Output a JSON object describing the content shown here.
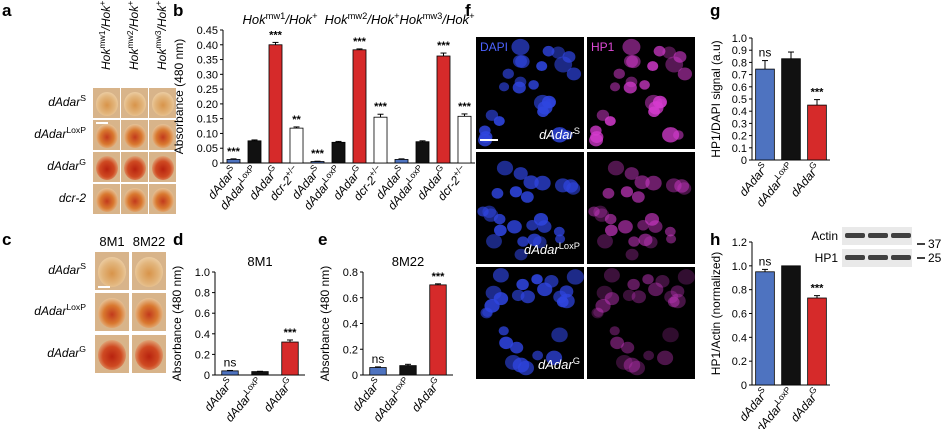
{
  "colors": {
    "blue": "#4e73c0",
    "black": "#111111",
    "red": "#d62a2a",
    "white": "#ffffff",
    "dapi": "#2f45e0",
    "hp1": "#d63bd0",
    "eye_bg": "#d8b48a"
  },
  "panel_a": {
    "letter": "a",
    "columns": [
      "Hok",
      "Hok",
      "Hok"
    ],
    "column_sups": [
      "mw1",
      "mw2",
      "mw3"
    ],
    "column_suffix": "/Hok",
    "column_suffix_sup": "+",
    "rows": [
      {
        "base": "dAdar",
        "sup": "S"
      },
      {
        "base": "dAdar",
        "sup": "LoxP"
      },
      {
        "base": "dAdar",
        "sup": "G"
      },
      {
        "base": "dcr-2",
        "sup": ""
      }
    ]
  },
  "panel_c": {
    "letter": "c",
    "columns": [
      "8M1",
      "8M22"
    ],
    "rows": [
      {
        "base": "dAdar",
        "sup": "S"
      },
      {
        "base": "dAdar",
        "sup": "LoxP"
      },
      {
        "base": "dAdar",
        "sup": "G"
      }
    ]
  },
  "panel_f": {
    "letter": "f",
    "channels": [
      "DAPI",
      "HP1"
    ],
    "rows": [
      {
        "base": "dAdar",
        "sup": "S"
      },
      {
        "base": "dAdar",
        "sup": "LoxP"
      },
      {
        "base": "dAdar",
        "sup": "G"
      }
    ]
  },
  "blot": {
    "bands": [
      "Actin",
      "HP1"
    ],
    "markers": [
      "37",
      "25"
    ]
  },
  "chart_data": [
    {
      "panel": "b",
      "type": "bar",
      "ylabel": "Absorbance (480 nm)",
      "ylim": [
        0,
        0.45
      ],
      "yticks": [
        "0",
        "0.05",
        "0.10",
        "0.15",
        "0.20",
        "0.25",
        "0.30",
        "0.35",
        "0.40",
        "0.45"
      ],
      "groups": [
        {
          "label_base": "Hok",
          "label_sup": "mw1",
          "label_suffix": "/Hok",
          "label_suffix_sup": "+"
        },
        {
          "label_base": "Hok",
          "label_sup": "mw2",
          "label_suffix": "/Hok",
          "label_suffix_sup": "+"
        },
        {
          "label_base": "Hok",
          "label_sup": "mw3",
          "label_suffix": "/Hok",
          "label_suffix_sup": "+"
        }
      ],
      "categories": [
        {
          "base": "dAdar",
          "sup": "S"
        },
        {
          "base": "dAdar",
          "sup": "LoxP"
        },
        {
          "base": "dAdar",
          "sup": "G"
        },
        {
          "base": "dcr-2",
          "sup": "+/−"
        },
        {
          "base": "dAdar",
          "sup": "S"
        },
        {
          "base": "dAdar",
          "sup": "LoxP"
        },
        {
          "base": "dAdar",
          "sup": "G"
        },
        {
          "base": "dcr-2",
          "sup": "+/−"
        },
        {
          "base": "dAdar",
          "sup": "S"
        },
        {
          "base": "dAdar",
          "sup": "LoxP"
        },
        {
          "base": "dAdar",
          "sup": "G"
        },
        {
          "base": "dcr-2",
          "sup": "+/−"
        }
      ],
      "values": [
        0.012,
        0.075,
        0.4,
        0.118,
        0.005,
        0.07,
        0.383,
        0.155,
        0.012,
        0.072,
        0.362,
        0.158
      ],
      "errors": [
        0.002,
        0.003,
        0.008,
        0.004,
        0.001,
        0.003,
        0.003,
        0.01,
        0.002,
        0.003,
        0.01,
        0.008
      ],
      "fills": [
        "blue",
        "black",
        "red",
        "white",
        "blue",
        "black",
        "red",
        "white",
        "blue",
        "black",
        "red",
        "white"
      ],
      "annotations": [
        "***",
        "",
        "***",
        "**",
        "***",
        "",
        "***",
        "***",
        "",
        "",
        "***",
        "***"
      ]
    },
    {
      "panel": "d",
      "type": "bar",
      "title": "8M1",
      "ylabel": "Absorbance (480 nm)",
      "ylim": [
        0,
        1.0
      ],
      "yticks": [
        "0",
        "0.2",
        "0.4",
        "0.6",
        "0.8",
        "1.0"
      ],
      "categories": [
        {
          "base": "dAdar",
          "sup": "S"
        },
        {
          "base": "dAdar",
          "sup": "LoxP"
        },
        {
          "base": "dAdar",
          "sup": "G"
        }
      ],
      "values": [
        0.04,
        0.033,
        0.32
      ],
      "errors": [
        0.004,
        0.003,
        0.02
      ],
      "fills": [
        "blue",
        "black",
        "red"
      ],
      "annotations": [
        "ns",
        "",
        "***"
      ]
    },
    {
      "panel": "e",
      "type": "bar",
      "title": "8M22",
      "ylabel": "Absorbance (480 nm)",
      "ylim": [
        0,
        0.8
      ],
      "yticks": [
        "0",
        "0.2",
        "0.4",
        "0.6",
        "0.8"
      ],
      "categories": [
        {
          "base": "dAdar",
          "sup": "S"
        },
        {
          "base": "dAdar",
          "sup": "LoxP"
        },
        {
          "base": "dAdar",
          "sup": "G"
        }
      ],
      "values": [
        0.058,
        0.073,
        0.7
      ],
      "errors": [
        0.005,
        0.01,
        0.008
      ],
      "fills": [
        "blue",
        "black",
        "red"
      ],
      "annotations": [
        "ns",
        "",
        "***"
      ]
    },
    {
      "panel": "g",
      "type": "bar",
      "ylabel": "HP1/DAPI signal (a.u)",
      "ylim": [
        0,
        1.0
      ],
      "yticks": [
        "0",
        "0.1",
        "0.2",
        "0.3",
        "0.4",
        "0.5",
        "0.6",
        "0.7",
        "0.8",
        "0.9",
        "1.0"
      ],
      "categories": [
        {
          "base": "dAdar",
          "sup": "S"
        },
        {
          "base": "dAdar",
          "sup": "LoxP"
        },
        {
          "base": "dAdar",
          "sup": "G"
        }
      ],
      "values": [
        0.745,
        0.83,
        0.45
      ],
      "errors": [
        0.07,
        0.055,
        0.045
      ],
      "fills": [
        "blue",
        "black",
        "red"
      ],
      "annotations": [
        "ns",
        "",
        "***"
      ]
    },
    {
      "panel": "h",
      "type": "bar",
      "ylabel": "HP1/Actin (normalized)",
      "ylim": [
        0,
        1.2
      ],
      "yticks": [
        "0",
        "0.2",
        "0.4",
        "0.6",
        "0.8",
        "1.0",
        "1.2"
      ],
      "categories": [
        {
          "base": "dAdar",
          "sup": "S"
        },
        {
          "base": "dAdar",
          "sup": "LoxP"
        },
        {
          "base": "dAdar",
          "sup": "G"
        }
      ],
      "values": [
        0.95,
        1.0,
        0.73
      ],
      "errors": [
        0.02,
        0.0,
        0.02
      ],
      "fills": [
        "blue",
        "black",
        "red"
      ],
      "annotations": [
        "ns",
        "",
        "***"
      ]
    }
  ]
}
